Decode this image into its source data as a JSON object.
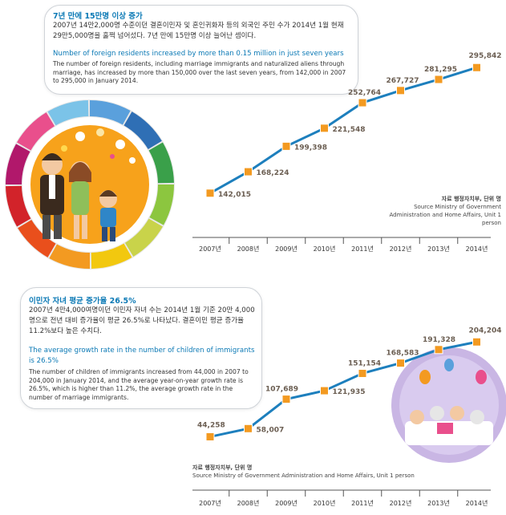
{
  "section1": {
    "korean_title": "7년 만에 15만명 이상 증가",
    "korean_body": "2007년 14만2,000명 수준이던 결혼이민자 및 혼인귀화자 등의 외국인 주민 수가 2014년 1월 현재 29만5,000명을 훌쩍 넘어섰다. 7년 만에 15만명 이상 늘어난 셈이다.",
    "english_title": "Number of foreign residents increased by more than 0.15 million in just seven years",
    "english_body": "The number of foreign residents, including marriage immigrants and naturalized aliens through marriage, has increased by more than 150,000 over the last seven years, from 142,000 in 2007 to 295,000 in January 2014.",
    "source_korean": "자료 행정자치부, 단위 명",
    "source_english": "Source Ministry of Government Administration and Home Affairs, Unit 1 person"
  },
  "section2": {
    "korean_title": "이민자 자녀 평균 증가율 26.5%",
    "korean_body": "2007년 4만4,000여명이던 이민자 자녀 수는 2014년 1월 기준 20만 4,000명으로 전년 대비 증가율이 평균 26.5%로 나타났다. 결혼이민 평균 증가율 11.2%보다 높은 수치다.",
    "english_title": "The average growth rate in the number of children of immigrants is 26.5%",
    "english_body": "The number of children of immigrants increased from 44,000 in 2007 to 204,000 in January 2014, and the average year-on-year growth rate is 26.5%, which is higher than 11.2%, the average growth rate in the number of marriage immigrants.",
    "source_korean": "자료 행정자치부, 단위 명",
    "source_english": "Source Ministry of Government Administration and Home Affairs, Unit 1 person"
  },
  "colors": {
    "line": "#1d7fbd",
    "marker": "#f39a21",
    "axis": "#555555",
    "heading": "#0b79b5",
    "label": "#6b5e52"
  },
  "chart_data": [
    {
      "type": "line",
      "title": "",
      "xlabel": "",
      "ylabel": "",
      "categories": [
        "2007년",
        "2008년",
        "2009년",
        "2010년",
        "2011년",
        "2012년",
        "2013년",
        "2014년"
      ],
      "values": [
        142015,
        168224,
        199398,
        221548,
        252764,
        267727,
        281295,
        295842
      ],
      "value_labels": [
        "142,015",
        "168,224",
        "199,398",
        "221,548",
        "252,764",
        "267,727",
        "281,295",
        "295,842"
      ],
      "ylim": [
        130000,
        300000
      ],
      "grid": false,
      "legend": "none"
    },
    {
      "type": "line",
      "title": "",
      "xlabel": "",
      "ylabel": "",
      "categories": [
        "2007년",
        "2008년",
        "2009년",
        "2010년",
        "2011년",
        "2012년",
        "2013년",
        "2014년"
      ],
      "values": [
        44258,
        58007,
        107689,
        121935,
        151154,
        168583,
        191328,
        204204
      ],
      "value_labels": [
        "44,258",
        "58,007",
        "107,689",
        "121,935",
        "151,154",
        "168,583",
        "191,328",
        "204,204"
      ],
      "ylim": [
        30000,
        210000
      ],
      "grid": false,
      "legend": "none"
    }
  ]
}
